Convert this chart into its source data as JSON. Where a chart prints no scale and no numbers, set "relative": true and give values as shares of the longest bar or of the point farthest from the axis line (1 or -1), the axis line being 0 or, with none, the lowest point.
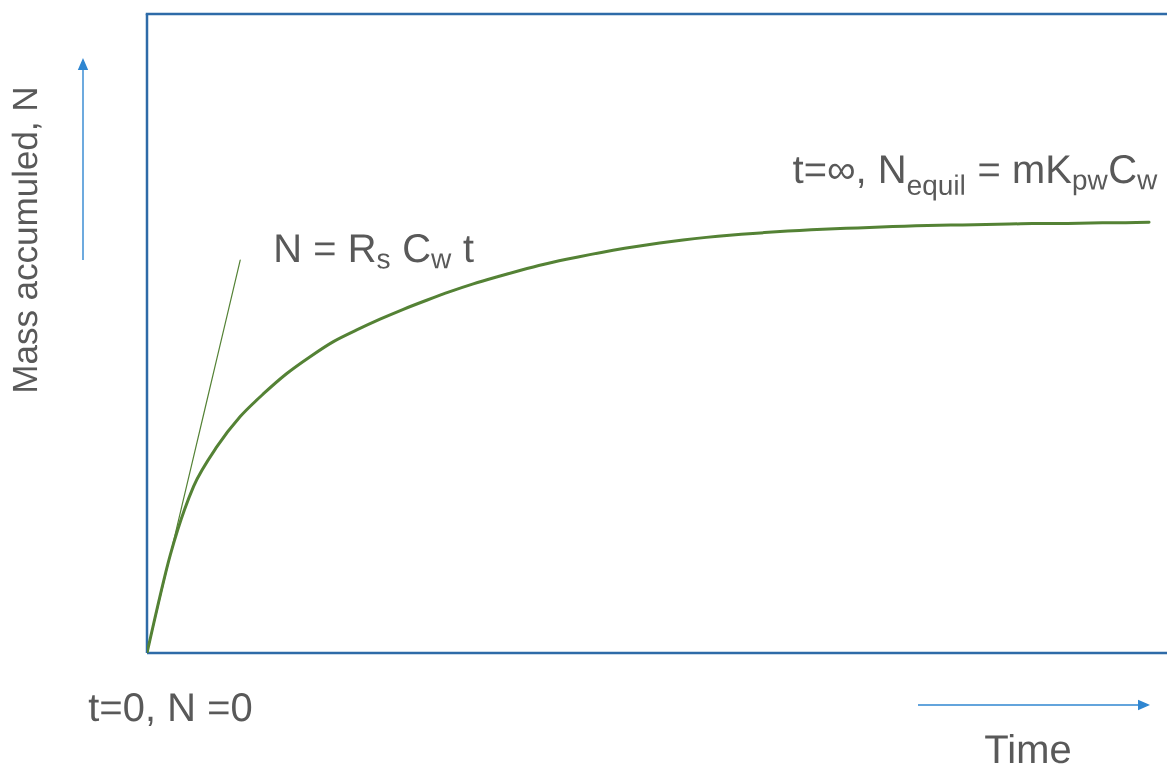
{
  "chart_data": {
    "type": "line",
    "xlabel": "Time",
    "ylabel": "Mass accumuled, N",
    "relative": true,
    "categories": [
      null,
      null,
      null,
      null,
      null,
      null,
      null,
      null,
      null,
      null,
      null,
      null,
      null,
      null,
      null,
      null,
      null,
      null,
      null,
      null,
      null,
      null,
      null,
      null,
      null,
      null,
      null,
      null,
      null,
      null,
      null,
      null,
      null,
      null,
      null,
      null,
      null,
      null,
      null,
      null,
      null,
      null,
      null,
      null
    ],
    "series": [
      {
        "color": "#548235",
        "values": [
          0,
          0.228,
          0.387,
          0.479,
          0.549,
          0.602,
          0.649,
          0.688,
          0.723,
          0.75,
          0.775,
          0.798,
          0.819,
          0.839,
          0.857,
          0.873,
          0.888,
          0.902,
          0.914,
          0.925,
          0.935,
          0.944,
          0.952,
          0.959,
          0.965,
          0.97,
          0.974,
          0.978,
          0.981,
          0.984,
          0.986,
          0.988,
          0.99,
          0.992,
          0.993,
          0.994,
          0.995,
          0.996,
          0.997,
          0.997,
          0.998,
          0.999,
          0.999,
          1
        ]
      },
      {
        "color": "#548235",
        "values": [
          0,
          0.228,
          0.456,
          0.684,
          0.912,
          null,
          null,
          null,
          null,
          null,
          null,
          null,
          null,
          null,
          null,
          null,
          null,
          null,
          null,
          null,
          null,
          null,
          null,
          null,
          null,
          null,
          null,
          null,
          null,
          null,
          null,
          null,
          null,
          null,
          null,
          null,
          null,
          null,
          null,
          null,
          null,
          null,
          null,
          null
        ]
      }
    ],
    "annotations": [
      "t=∞, N$_{equil}$ = mK$_{pw}$C$_{w}$",
      "N = R$_{s}$ C$_{w}$ t",
      "t=0, N =0"
    ]
  }
}
